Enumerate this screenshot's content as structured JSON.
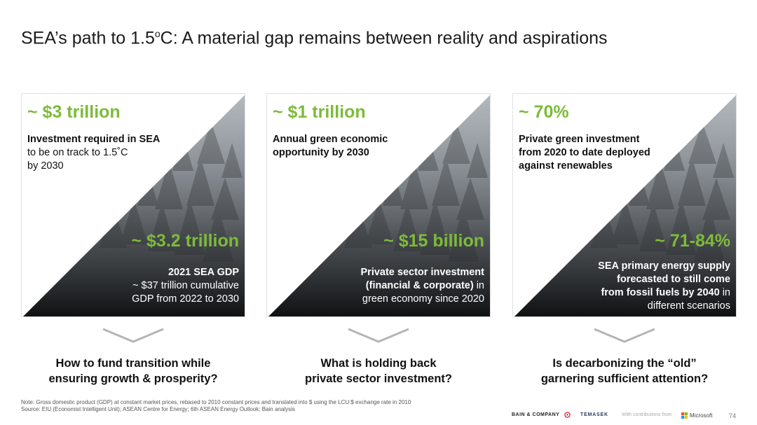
{
  "title": {
    "prefix": "SEA’s path to 1.5",
    "sup": "o",
    "suffix": "C: A material gap remains between reality and aspirations"
  },
  "cards": [
    {
      "top_metric": "~ $3 trillion",
      "top_desc_bold": "Investment required in SEA",
      "top_desc_line2": "to be on track to 1.5˚C",
      "top_desc_line3": "by 2030",
      "bottom_metric": "~ $3.2 trillion",
      "bottom_line1": "2021 SEA GDP",
      "bottom_line2": "~ $37 trillion cumulative",
      "bottom_line3": "GDP from 2022 to 2030",
      "question_line1": "How to fund transition while",
      "question_line2": "ensuring growth & prosperity?"
    },
    {
      "top_metric": "~ $1 trillion",
      "top_desc_line1": "Annual green economic",
      "top_desc_line2": "opportunity by 2030",
      "bottom_metric": "~ $15 billion",
      "bottom_line1": "Private sector investment",
      "bottom_line2_bold": "(financial & corporate)",
      "bottom_line2_rest": " in",
      "bottom_line3": "green economy since 2020",
      "question_line1": "What is holding back",
      "question_line2": "private sector investment?"
    },
    {
      "top_metric": "~ 70%",
      "top_desc_line1": "Private green investment",
      "top_desc_line2": "from 2020 to date deployed",
      "top_desc_line3": "against renewables",
      "bottom_metric": "~ 71-84%",
      "bottom_line1": "SEA primary energy supply",
      "bottom_line2": "forecasted to still come",
      "bottom_line3_bold": "from fossil fuels by 2040",
      "bottom_line3_rest": " in",
      "bottom_line4": "different scenarios",
      "question_line1": "Is decarbonizing the “old”",
      "question_line2": "garnering sufficient attention?"
    }
  ],
  "note_line1": "Note: Gross domestic product (GDP) at constant market prices, rebased to 2010 constant prices and translated into $ using the LCU:$ exchange rate in 2010",
  "note_line2": "Source: EIU (Economist Intelligent Unit); ASEAN Centre for Energy; 6th ASEAN Energy Outlook; Bain analysis",
  "footer": {
    "bain": "BAIN & COMPANY",
    "temasek": "TEMASEK",
    "contrib": "With contributions from",
    "microsoft": "Microsoft",
    "page": "74"
  },
  "colors": {
    "accent_green": "#7dbb3a"
  }
}
